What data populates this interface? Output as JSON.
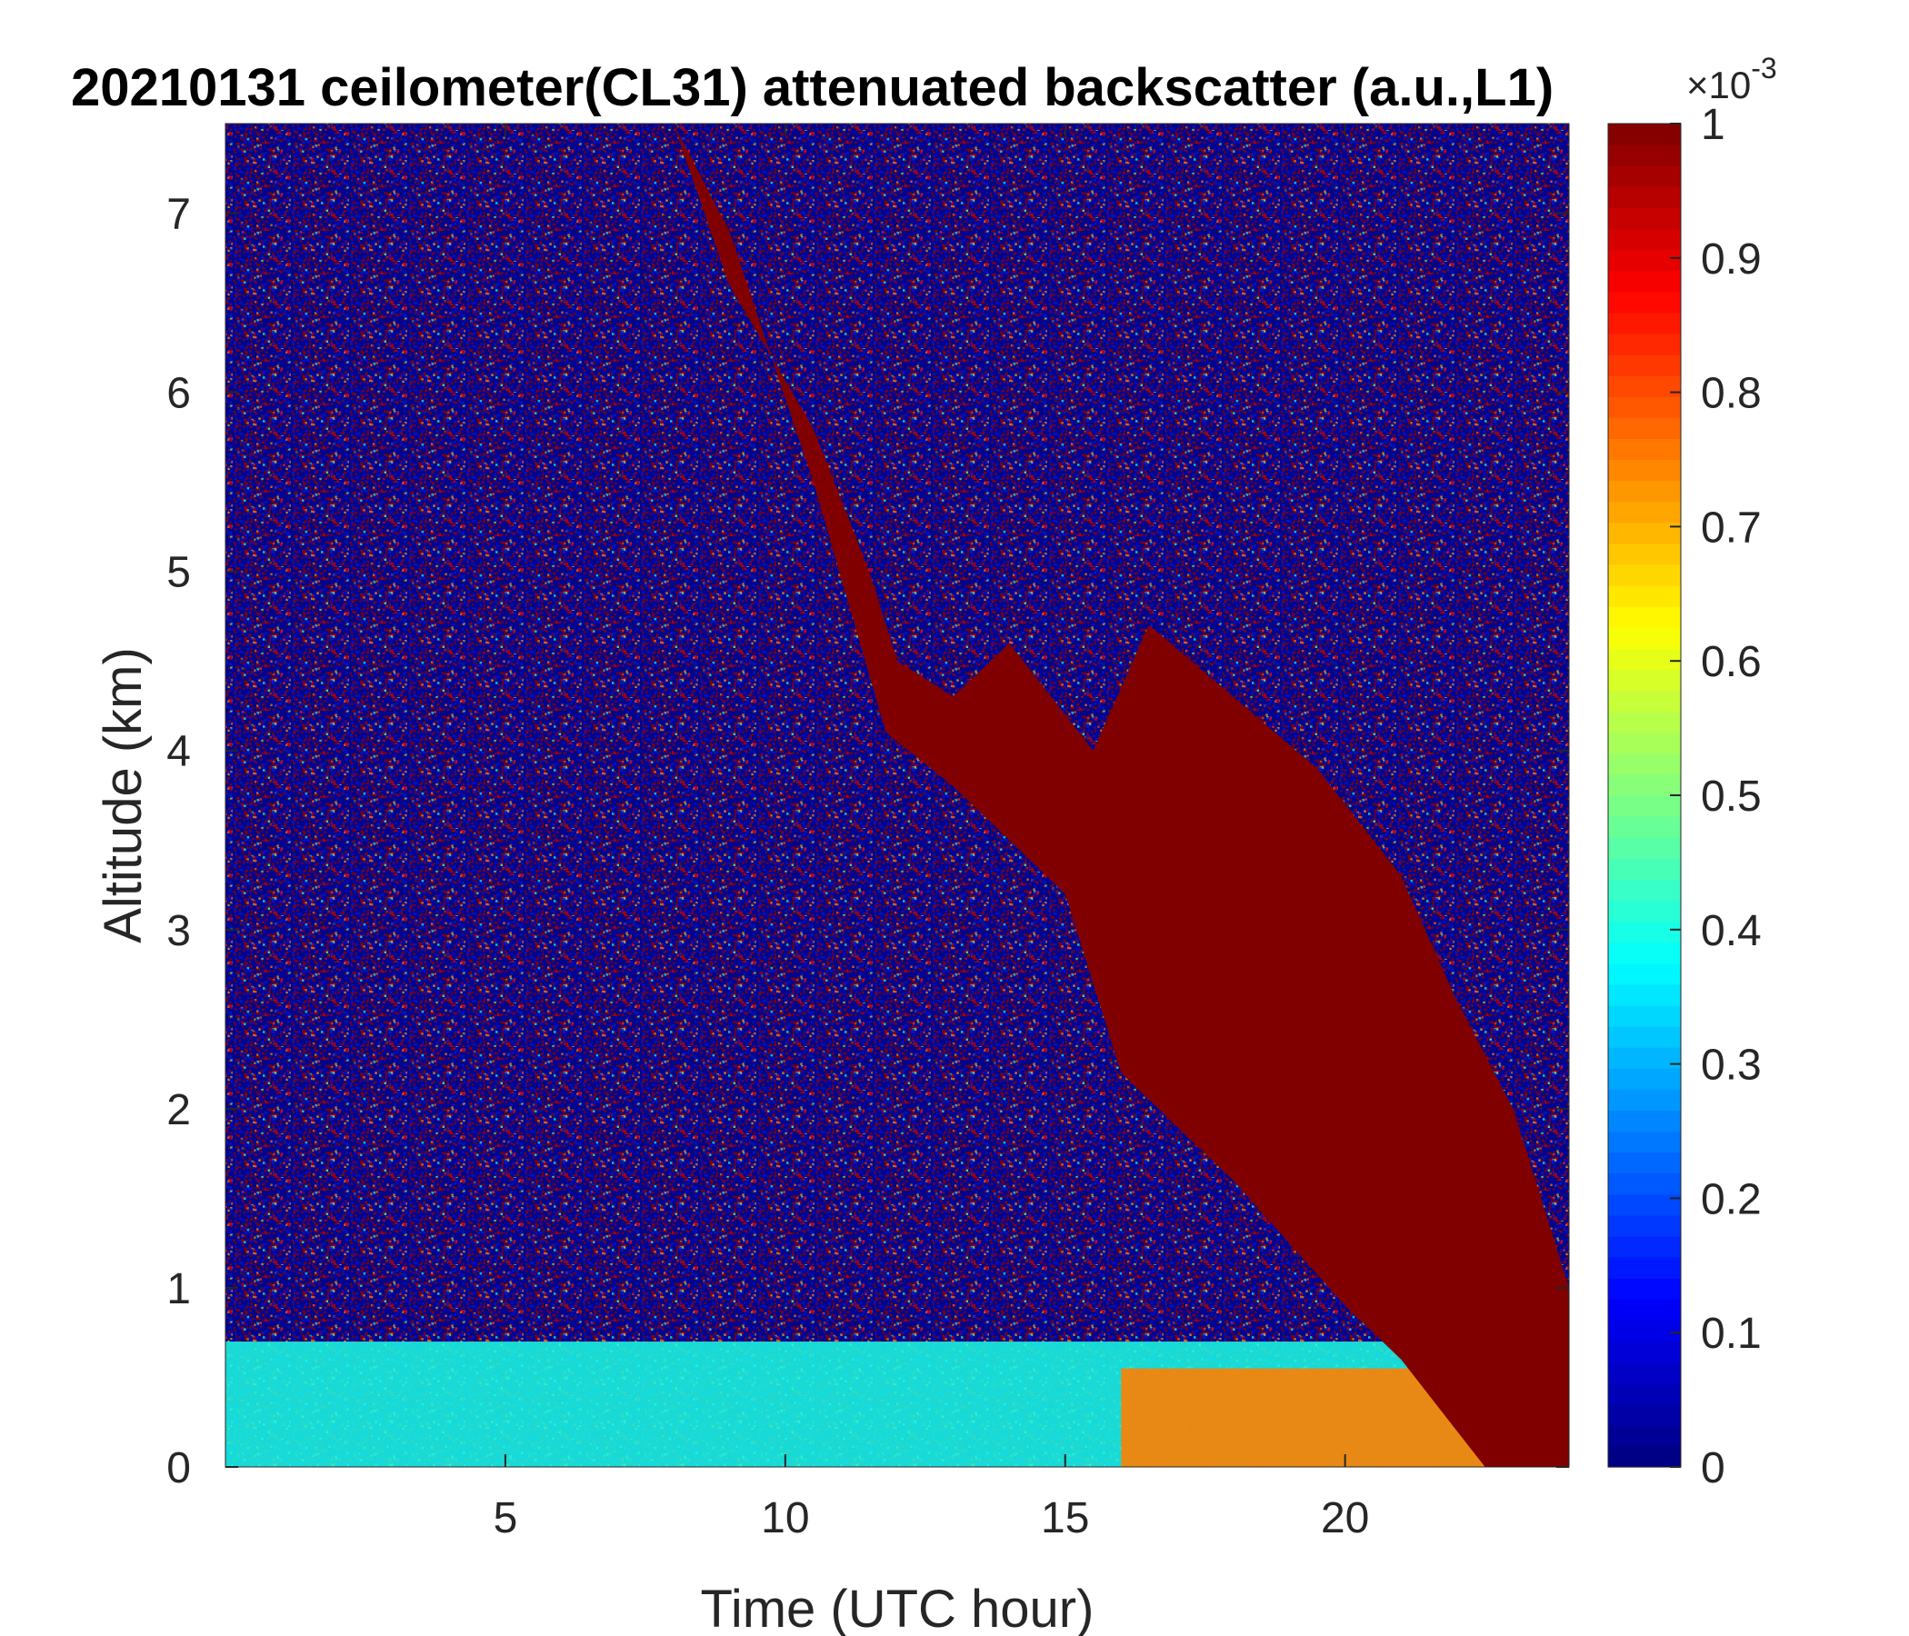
{
  "chart_data": {
    "type": "heatmap",
    "title": "20210131 ceilometer(CL31) attenuated backscatter (a.u.,L1)",
    "xlabel": "Time (UTC hour)",
    "ylabel": "Altitude (km)",
    "xlim": [
      0,
      24
    ],
    "ylim": [
      0,
      7.5
    ],
    "x_ticks": [
      5,
      10,
      15,
      20
    ],
    "y_ticks": [
      0,
      1,
      2,
      3,
      4,
      5,
      6,
      7
    ],
    "colormap": "jet",
    "colorbar": {
      "range": [
        0,
        1
      ],
      "ticks": [
        0,
        0.1,
        0.2,
        0.3,
        0.4,
        0.5,
        0.6,
        0.7,
        0.8,
        0.9,
        1
      ],
      "tick_labels": [
        "0",
        "0.1",
        "0.2",
        "0.3",
        "0.4",
        "0.5",
        "0.6",
        "0.7",
        "0.8",
        "0.9",
        "1"
      ],
      "multiplier_base": "×10",
      "multiplier_exponent": "-3"
    },
    "features": {
      "cloud_layer_top_km": [
        {
          "hour": 8.0,
          "km": 7.5
        },
        {
          "hour": 9.0,
          "km": 6.6
        },
        {
          "hour": 10.5,
          "km": 5.8
        },
        {
          "hour": 11.5,
          "km": 5.0
        },
        {
          "hour": 12.0,
          "km": 4.5
        },
        {
          "hour": 13.0,
          "km": 4.3
        },
        {
          "hour": 14.0,
          "km": 4.6
        },
        {
          "hour": 15.5,
          "km": 4.0
        },
        {
          "hour": 16.5,
          "km": 4.7
        },
        {
          "hour": 18.0,
          "km": 4.3
        },
        {
          "hour": 19.5,
          "km": 3.9
        },
        {
          "hour": 21.0,
          "km": 3.3
        },
        {
          "hour": 22.0,
          "km": 2.6
        },
        {
          "hour": 23.0,
          "km": 2.0
        },
        {
          "hour": 24.0,
          "km": 1.0
        }
      ],
      "cloud_layer_base_km": [
        {
          "hour": 8.0,
          "km": 7.5
        },
        {
          "hour": 9.0,
          "km": 6.9
        },
        {
          "hour": 10.5,
          "km": 5.5
        },
        {
          "hour": 11.8,
          "km": 4.1
        },
        {
          "hour": 13.0,
          "km": 3.8
        },
        {
          "hour": 15.0,
          "km": 3.2
        },
        {
          "hour": 16.0,
          "km": 2.2
        },
        {
          "hour": 18.0,
          "km": 1.6
        },
        {
          "hour": 20.0,
          "km": 0.9
        },
        {
          "hour": 21.0,
          "km": 0.6
        },
        {
          "hour": 22.0,
          "km": 0.2
        },
        {
          "hour": 22.5,
          "km": 0.0
        },
        {
          "hour": 24.0,
          "km": 0.0
        }
      ],
      "boundary_layer_top_km": 0.7,
      "boundary_layer_value": 0.4
    }
  }
}
